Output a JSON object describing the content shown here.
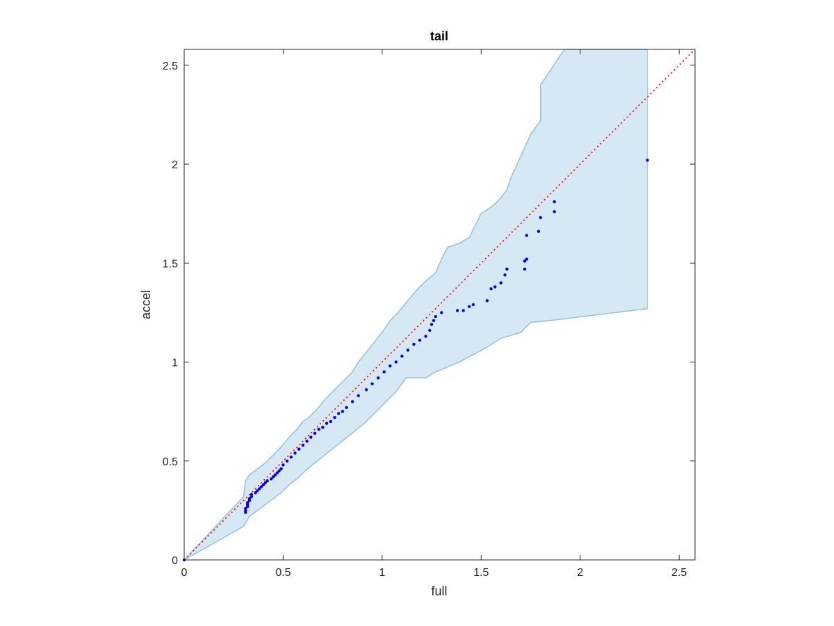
{
  "chart_data": {
    "type": "scatter",
    "title": "tail",
    "xlabel": "full",
    "ylabel": "accel",
    "xlim": [
      0,
      2.58
    ],
    "ylim": [
      0,
      2.58
    ],
    "x_ticks": [
      "0",
      "0.5",
      "1",
      "1.5",
      "2",
      "2.5"
    ],
    "y_ticks": [
      "0",
      "0.5",
      "1",
      "1.5",
      "2",
      "2.5"
    ],
    "grid": false,
    "box": true,
    "reference_line": {
      "style": "dotted",
      "color": "#ff0000",
      "x": [
        0,
        2.58
      ],
      "y": [
        0,
        2.58
      ]
    },
    "confidence_band": {
      "fill": "#d6e8f4",
      "stroke": "#8fc2df",
      "upper": [
        [
          0,
          0
        ],
        [
          0.3,
          0.32
        ],
        [
          0.31,
          0.4
        ],
        [
          0.33,
          0.43
        ],
        [
          0.37,
          0.46
        ],
        [
          0.41,
          0.49
        ],
        [
          0.45,
          0.53
        ],
        [
          0.49,
          0.57
        ],
        [
          0.53,
          0.62
        ],
        [
          0.57,
          0.66
        ],
        [
          0.6,
          0.7
        ],
        [
          0.63,
          0.72
        ],
        [
          0.67,
          0.76
        ],
        [
          0.71,
          0.81
        ],
        [
          0.76,
          0.86
        ],
        [
          0.8,
          0.9
        ],
        [
          0.85,
          0.95
        ],
        [
          0.88,
          1.0
        ],
        [
          0.92,
          1.05
        ],
        [
          0.96,
          1.1
        ],
        [
          1.0,
          1.15
        ],
        [
          1.04,
          1.21
        ],
        [
          1.08,
          1.25
        ],
        [
          1.13,
          1.31
        ],
        [
          1.18,
          1.37
        ],
        [
          1.22,
          1.41
        ],
        [
          1.27,
          1.45
        ],
        [
          1.3,
          1.52
        ],
        [
          1.33,
          1.58
        ],
        [
          1.39,
          1.6
        ],
        [
          1.44,
          1.63
        ],
        [
          1.5,
          1.75
        ],
        [
          1.56,
          1.79
        ],
        [
          1.6,
          1.83
        ],
        [
          1.63,
          1.87
        ],
        [
          1.65,
          1.93
        ],
        [
          1.75,
          2.15
        ],
        [
          1.8,
          2.22
        ],
        [
          1.8,
          2.4
        ],
        [
          1.88,
          2.52
        ],
        [
          1.92,
          2.58
        ],
        [
          2.34,
          2.58
        ]
      ],
      "lower": [
        [
          0,
          0
        ],
        [
          0.3,
          0.17
        ],
        [
          0.33,
          0.22
        ],
        [
          0.37,
          0.25
        ],
        [
          0.41,
          0.28
        ],
        [
          0.45,
          0.31
        ],
        [
          0.49,
          0.34
        ],
        [
          0.53,
          0.38
        ],
        [
          0.57,
          0.41
        ],
        [
          0.61,
          0.45
        ],
        [
          0.66,
          0.49
        ],
        [
          0.71,
          0.53
        ],
        [
          0.76,
          0.57
        ],
        [
          0.81,
          0.61
        ],
        [
          0.86,
          0.65
        ],
        [
          0.91,
          0.69
        ],
        [
          0.96,
          0.74
        ],
        [
          1.02,
          0.8
        ],
        [
          1.07,
          0.85
        ],
        [
          1.12,
          0.92
        ],
        [
          1.22,
          0.92
        ],
        [
          1.27,
          0.95
        ],
        [
          1.39,
          1.0
        ],
        [
          1.52,
          1.07
        ],
        [
          1.6,
          1.12
        ],
        [
          1.7,
          1.15
        ],
        [
          1.75,
          1.2
        ],
        [
          1.85,
          1.21
        ],
        [
          2.34,
          1.27
        ]
      ]
    },
    "series": [
      {
        "color": "#0000ee",
        "points": [
          [
            0.0,
            0.0
          ],
          [
            0.31,
            0.24
          ],
          [
            0.31,
            0.25
          ],
          [
            0.31,
            0.26
          ],
          [
            0.32,
            0.27
          ],
          [
            0.32,
            0.28
          ],
          [
            0.32,
            0.29
          ],
          [
            0.33,
            0.3
          ],
          [
            0.33,
            0.31
          ],
          [
            0.34,
            0.32
          ],
          [
            0.34,
            0.33
          ],
          [
            0.36,
            0.34
          ],
          [
            0.37,
            0.35
          ],
          [
            0.38,
            0.36
          ],
          [
            0.39,
            0.37
          ],
          [
            0.4,
            0.38
          ],
          [
            0.41,
            0.39
          ],
          [
            0.42,
            0.4
          ],
          [
            0.44,
            0.41
          ],
          [
            0.45,
            0.42
          ],
          [
            0.46,
            0.43
          ],
          [
            0.47,
            0.44
          ],
          [
            0.48,
            0.45
          ],
          [
            0.49,
            0.46
          ],
          [
            0.5,
            0.48
          ],
          [
            0.52,
            0.5
          ],
          [
            0.54,
            0.52
          ],
          [
            0.56,
            0.54
          ],
          [
            0.58,
            0.56
          ],
          [
            0.6,
            0.58
          ],
          [
            0.62,
            0.6
          ],
          [
            0.64,
            0.62
          ],
          [
            0.66,
            0.64
          ],
          [
            0.68,
            0.66
          ],
          [
            0.7,
            0.67
          ],
          [
            0.72,
            0.69
          ],
          [
            0.74,
            0.7
          ],
          [
            0.76,
            0.72
          ],
          [
            0.78,
            0.74
          ],
          [
            0.8,
            0.75
          ],
          [
            0.82,
            0.77
          ],
          [
            0.85,
            0.8
          ],
          [
            0.88,
            0.83
          ],
          [
            0.92,
            0.86
          ],
          [
            0.95,
            0.89
          ],
          [
            0.98,
            0.92
          ],
          [
            1.01,
            0.95
          ],
          [
            1.04,
            0.98
          ],
          [
            1.07,
            1.0
          ],
          [
            1.1,
            1.03
          ],
          [
            1.13,
            1.06
          ],
          [
            1.16,
            1.09
          ],
          [
            1.19,
            1.11
          ],
          [
            1.22,
            1.13
          ],
          [
            1.24,
            1.16
          ],
          [
            1.25,
            1.19
          ],
          [
            1.26,
            1.21
          ],
          [
            1.27,
            1.23
          ],
          [
            1.3,
            1.25
          ],
          [
            1.38,
            1.26
          ],
          [
            1.41,
            1.26
          ],
          [
            1.44,
            1.28
          ],
          [
            1.46,
            1.29
          ],
          [
            1.53,
            1.31
          ],
          [
            1.55,
            1.37
          ],
          [
            1.57,
            1.38
          ],
          [
            1.6,
            1.4
          ],
          [
            1.62,
            1.44
          ],
          [
            1.63,
            1.47
          ],
          [
            1.72,
            1.47
          ],
          [
            1.72,
            1.51
          ],
          [
            1.73,
            1.52
          ],
          [
            1.73,
            1.64
          ],
          [
            1.79,
            1.66
          ],
          [
            1.8,
            1.73
          ],
          [
            1.87,
            1.76
          ],
          [
            1.87,
            1.81
          ],
          [
            2.34,
            2.02
          ]
        ]
      }
    ]
  }
}
